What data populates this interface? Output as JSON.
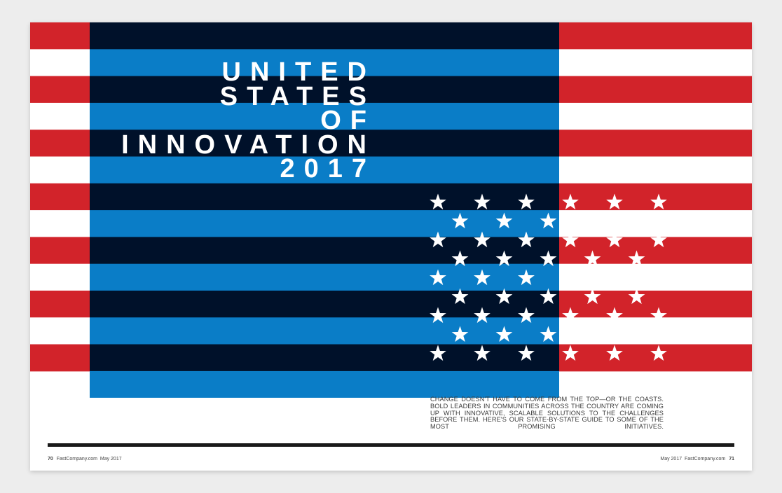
{
  "colors": {
    "red": "#d2232a",
    "white": "#ffffff",
    "navy": "#00112a",
    "blue": "#0a7dc7"
  },
  "title": {
    "lines": [
      "UNITED",
      "STATES",
      "OF",
      "INNOVATION",
      "2017"
    ]
  },
  "dek": "Change doesn't have to come from the top—or the coasts. Bold leaders in communities across the country are coming up with innovative, scalable solutions to the challenges before them. Here's our state-by-state guide to some of the most promising initiatives.",
  "footer": {
    "left": {
      "page": "70",
      "site": "FastCompany.com",
      "date": "May 2017"
    },
    "right": {
      "date": "May 2017",
      "site": "FastCompany.com",
      "page": "71"
    }
  },
  "icons": [
    "star-icon"
  ]
}
